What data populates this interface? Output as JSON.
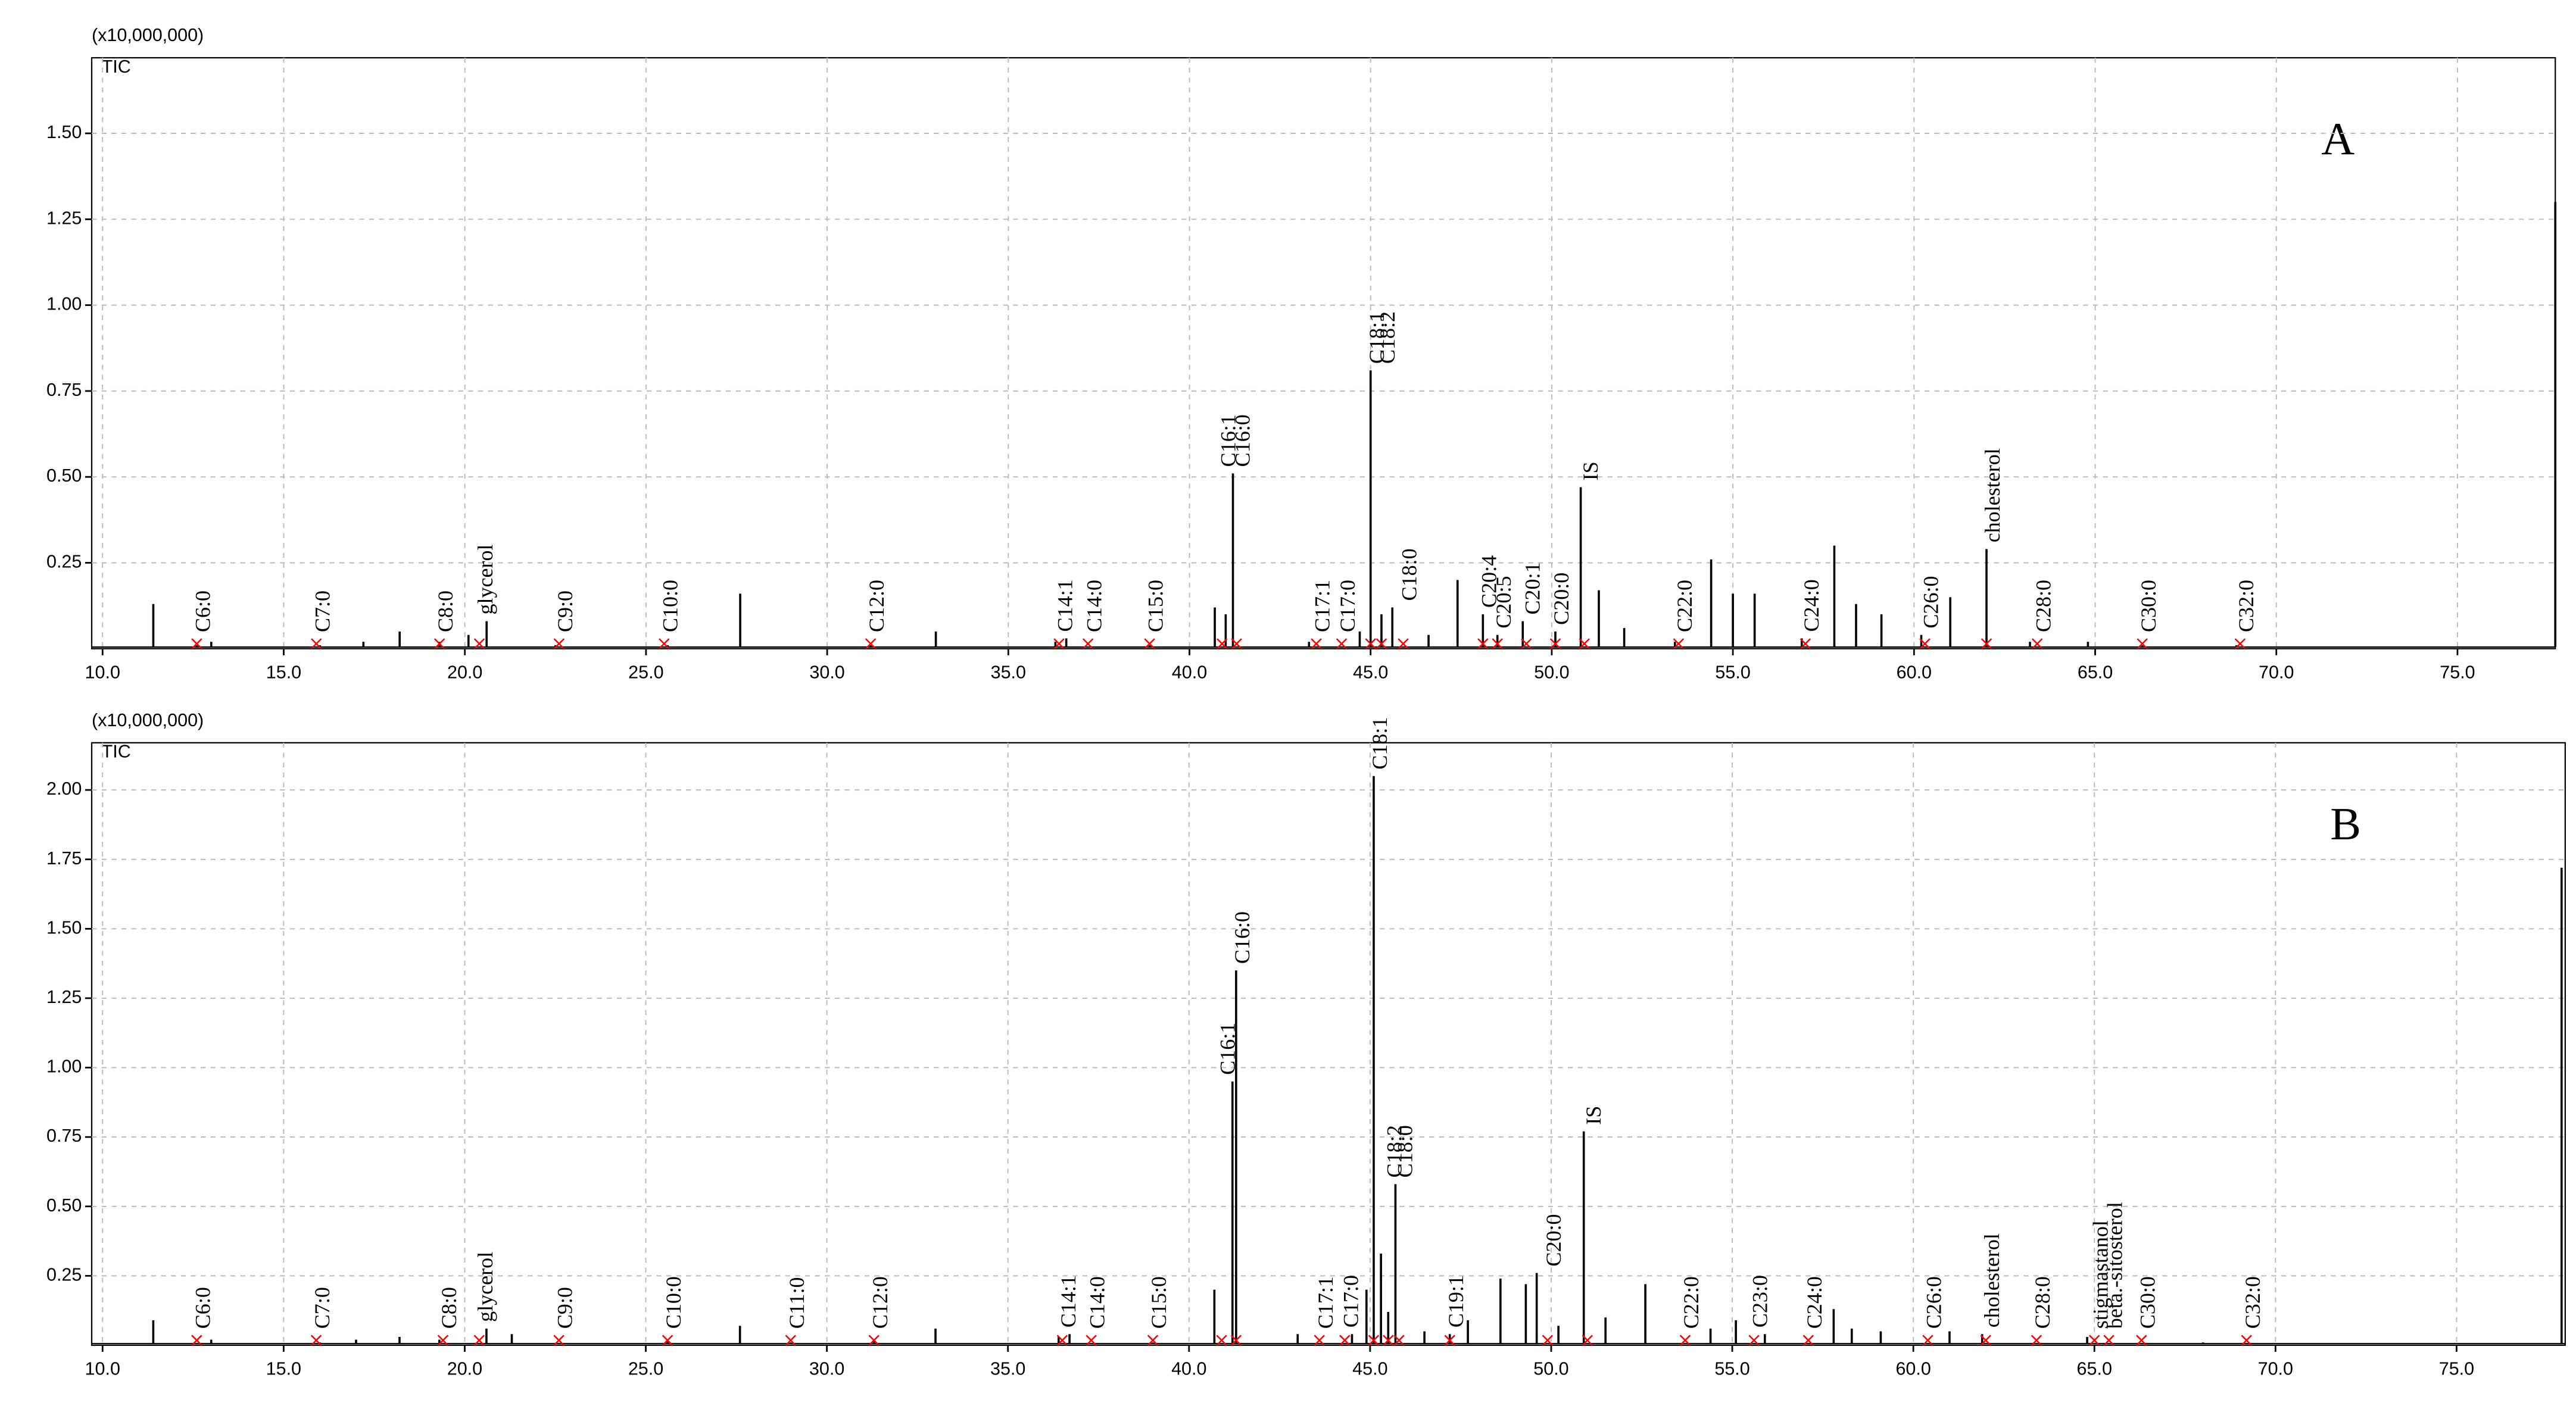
{
  "chart_data": [
    {
      "type": "chromatogram",
      "y_unit": "(x10,000,000)",
      "label": "TIC",
      "panel": "A",
      "color": "#000000",
      "marker_color": "#ff0000",
      "grid": true,
      "xlim": [
        9.7,
        77.7
      ],
      "ylim": [
        0,
        1.72
      ],
      "xticks": [
        {
          "value": 10,
          "label": "10.0"
        },
        {
          "value": 15,
          "label": "15.0"
        },
        {
          "value": 20,
          "label": "20.0"
        },
        {
          "value": 25,
          "label": "25.0"
        },
        {
          "value": 30,
          "label": "30.0"
        },
        {
          "value": 35,
          "label": "35.0"
        },
        {
          "value": 40,
          "label": "40.0"
        },
        {
          "value": 45,
          "label": "45.0"
        },
        {
          "value": 50,
          "label": "50.0"
        },
        {
          "value": 55,
          "label": "55.0"
        },
        {
          "value": 60,
          "label": "60.0"
        },
        {
          "value": 65,
          "label": "65.0"
        },
        {
          "value": 70,
          "label": "70.0"
        },
        {
          "value": 75,
          "label": "75.0"
        }
      ],
      "yticks": [
        0.25,
        {
          "value": 0.5,
          "label": "0.50"
        },
        0.75,
        {
          "value": 1,
          "label": "1.00"
        },
        1.25,
        {
          "value": 1.5,
          "label": "1.50"
        }
      ],
      "x": [
        11.4,
        12.6,
        13,
        16,
        17.2,
        18.2,
        19.3,
        20.1,
        20.6,
        22.5,
        25.6,
        27.6,
        31.2,
        33,
        36.3,
        36.6,
        38.9,
        40.7,
        41,
        41.2,
        43.3,
        44.7,
        45,
        45.3,
        45.6,
        46.6,
        47.4,
        48.1,
        48.5,
        49.2,
        50.1,
        50.8,
        51.3,
        52,
        53.4,
        54.4,
        55,
        55.6,
        56.9,
        57.8,
        58.4,
        59.1,
        60.2,
        61,
        62,
        63.2,
        64.8,
        66.3,
        68.9,
        77.7
      ],
      "values": [
        0.13,
        0.01,
        0.02,
        0.01,
        0.02,
        0.05,
        0.02,
        0.04,
        0.08,
        0.01,
        0.01,
        0.16,
        0.01,
        0.05,
        0.02,
        0.03,
        0.01,
        0.12,
        0.1,
        0.51,
        0.02,
        0.05,
        0.81,
        0.1,
        0.12,
        0.04,
        0.2,
        0.1,
        0.04,
        0.08,
        0.05,
        0.47,
        0.17,
        0.06,
        0.02,
        0.26,
        0.16,
        0.16,
        0.03,
        0.3,
        0.13,
        0.1,
        0.04,
        0.15,
        0.29,
        0.02,
        0.02,
        0.01,
        0.01,
        1.3
      ],
      "annotations": [
        {
          "text": "C6:0",
          "x": 12.6
        },
        {
          "text": "C7:0",
          "x": 15.9
        },
        {
          "text": "C8:0",
          "x": 19.3
        },
        {
          "text": "glycerol",
          "x": 20.4
        },
        {
          "text": "C9:0",
          "x": 22.6
        },
        {
          "text": "C10:0",
          "x": 25.5
        },
        {
          "text": "C12:0",
          "x": 31.2
        },
        {
          "text": "C14:1",
          "x": 36.4
        },
        {
          "text": "C14:0",
          "x": 37.2
        },
        {
          "text": "C15:0",
          "x": 38.9
        },
        {
          "text": "C16:1",
          "x": 40.9
        },
        {
          "text": "C16:0",
          "x": 41.3
        },
        {
          "text": "C17:1",
          "x": 43.5
        },
        {
          "text": "C17:0",
          "x": 44.2
        },
        {
          "text": "C18:1",
          "x": 45
        },
        {
          "text": "C18:2",
          "x": 45.3
        },
        {
          "text": "C18:0",
          "x": 45.9
        },
        {
          "text": "C20:4",
          "x": 48.1
        },
        {
          "text": "C20:5",
          "x": 48.5
        },
        {
          "text": "C20:1",
          "x": 49.3
        },
        {
          "text": "C20:0",
          "x": 50.1
        },
        {
          "text": "IS",
          "x": 50.9
        },
        {
          "text": "C22:0",
          "x": 53.5
        },
        {
          "text": "C24:0",
          "x": 57
        },
        {
          "text": "C26:0",
          "x": 60.3
        },
        {
          "text": "cholesterol",
          "x": 62
        },
        {
          "text": "C28:0",
          "x": 63.4
        },
        {
          "text": "C30:0",
          "x": 66.3
        },
        {
          "text": "C32:0",
          "x": 69
        }
      ]
    },
    {
      "type": "chromatogram",
      "y_unit": "(x10,000,000)",
      "label": "TIC",
      "panel": "B",
      "color": "#000000",
      "marker_color": "#ff0000",
      "grid": true,
      "xlim": [
        9.7,
        78
      ],
      "ylim": [
        0,
        2.17
      ],
      "xticks": [
        {
          "value": 10,
          "label": "10.0"
        },
        {
          "value": 15,
          "label": "15.0"
        },
        {
          "value": 20,
          "label": "20.0"
        },
        {
          "value": 25,
          "label": "25.0"
        },
        {
          "value": 30,
          "label": "30.0"
        },
        {
          "value": 35,
          "label": "35.0"
        },
        {
          "value": 40,
          "label": "40.0"
        },
        {
          "value": 45,
          "label": "45.0"
        },
        {
          "value": 50,
          "label": "50.0"
        },
        {
          "value": 55,
          "label": "55.0"
        },
        {
          "value": 60,
          "label": "60.0"
        },
        {
          "value": 65,
          "label": "65.0"
        },
        {
          "value": 70,
          "label": "70.0"
        },
        {
          "value": 75,
          "label": "75.0"
        }
      ],
      "yticks": [
        0.25,
        {
          "value": 0.5,
          "label": "0.50"
        },
        0.75,
        {
          "value": 1,
          "label": "1.00"
        },
        1.25,
        {
          "value": 1.5,
          "label": "1.50"
        },
        1.75,
        {
          "value": 2,
          "label": "2.00"
        }
      ],
      "x": [
        11.4,
        13,
        16,
        17,
        18.2,
        19.3,
        20.6,
        21.3,
        25.6,
        27.6,
        29,
        31.3,
        33,
        36.4,
        36.7,
        39,
        40.7,
        41.2,
        41.3,
        43,
        44.5,
        44.9,
        45.1,
        45.3,
        45.5,
        45.7,
        46.5,
        47.2,
        47.7,
        48.6,
        49.3,
        49.6,
        50.2,
        50.9,
        51.5,
        52.6,
        54.4,
        55.1,
        55.9,
        57.8,
        58.3,
        59.1,
        61,
        61.9,
        64.8,
        68,
        77.9
      ],
      "values": [
        0.09,
        0.02,
        0.01,
        0.02,
        0.03,
        0.02,
        0.06,
        0.04,
        0.02,
        0.07,
        0.01,
        0.02,
        0.06,
        0.03,
        0.04,
        0.01,
        0.2,
        0.95,
        1.35,
        0.04,
        0.04,
        0.2,
        2.05,
        0.33,
        0.12,
        0.58,
        0.05,
        0.04,
        0.09,
        0.24,
        0.22,
        0.26,
        0.07,
        0.77,
        0.1,
        0.22,
        0.06,
        0.09,
        0.04,
        0.13,
        0.06,
        0.05,
        0.05,
        0.04,
        0.03,
        0.01,
        1.72
      ],
      "annotations": [
        {
          "text": "C6:0",
          "x": 12.6
        },
        {
          "text": "C7:0",
          "x": 15.9
        },
        {
          "text": "C8:0",
          "x": 19.4
        },
        {
          "text": "glycerol",
          "x": 20.4
        },
        {
          "text": "C9:0",
          "x": 22.6
        },
        {
          "text": "C10:0",
          "x": 25.6
        },
        {
          "text": "C11:0",
          "x": 29
        },
        {
          "text": "C12:0",
          "x": 31.3
        },
        {
          "text": "C14:1",
          "x": 36.5
        },
        {
          "text": "C14:0",
          "x": 37.3
        },
        {
          "text": "C15:0",
          "x": 39
        },
        {
          "text": "C16:1",
          "x": 40.9
        },
        {
          "text": "C16:0",
          "x": 41.3
        },
        {
          "text": "C17:1",
          "x": 43.6
        },
        {
          "text": "C17:0",
          "x": 44.3
        },
        {
          "text": "C18:1",
          "x": 45.1
        },
        {
          "text": "C18:2",
          "x": 45.5
        },
        {
          "text": "C18:0",
          "x": 45.8
        },
        {
          "text": "C19:1",
          "x": 47.2
        },
        {
          "text": "C20:0",
          "x": 49.9
        },
        {
          "text": "IS",
          "x": 51
        },
        {
          "text": "C22:0",
          "x": 53.7
        },
        {
          "text": "C23:0",
          "x": 55.6
        },
        {
          "text": "C24:0",
          "x": 57.1
        },
        {
          "text": "C26:0",
          "x": 60.4
        },
        {
          "text": "cholesterol",
          "x": 62
        },
        {
          "text": "C28:0",
          "x": 63.4
        },
        {
          "text": "stigmastanol",
          "x": 65
        },
        {
          "text": "beta.-sitosterol",
          "x": 65.4
        },
        {
          "text": "C30:0",
          "x": 66.3
        },
        {
          "text": "C32:0",
          "x": 69.2
        }
      ]
    }
  ]
}
